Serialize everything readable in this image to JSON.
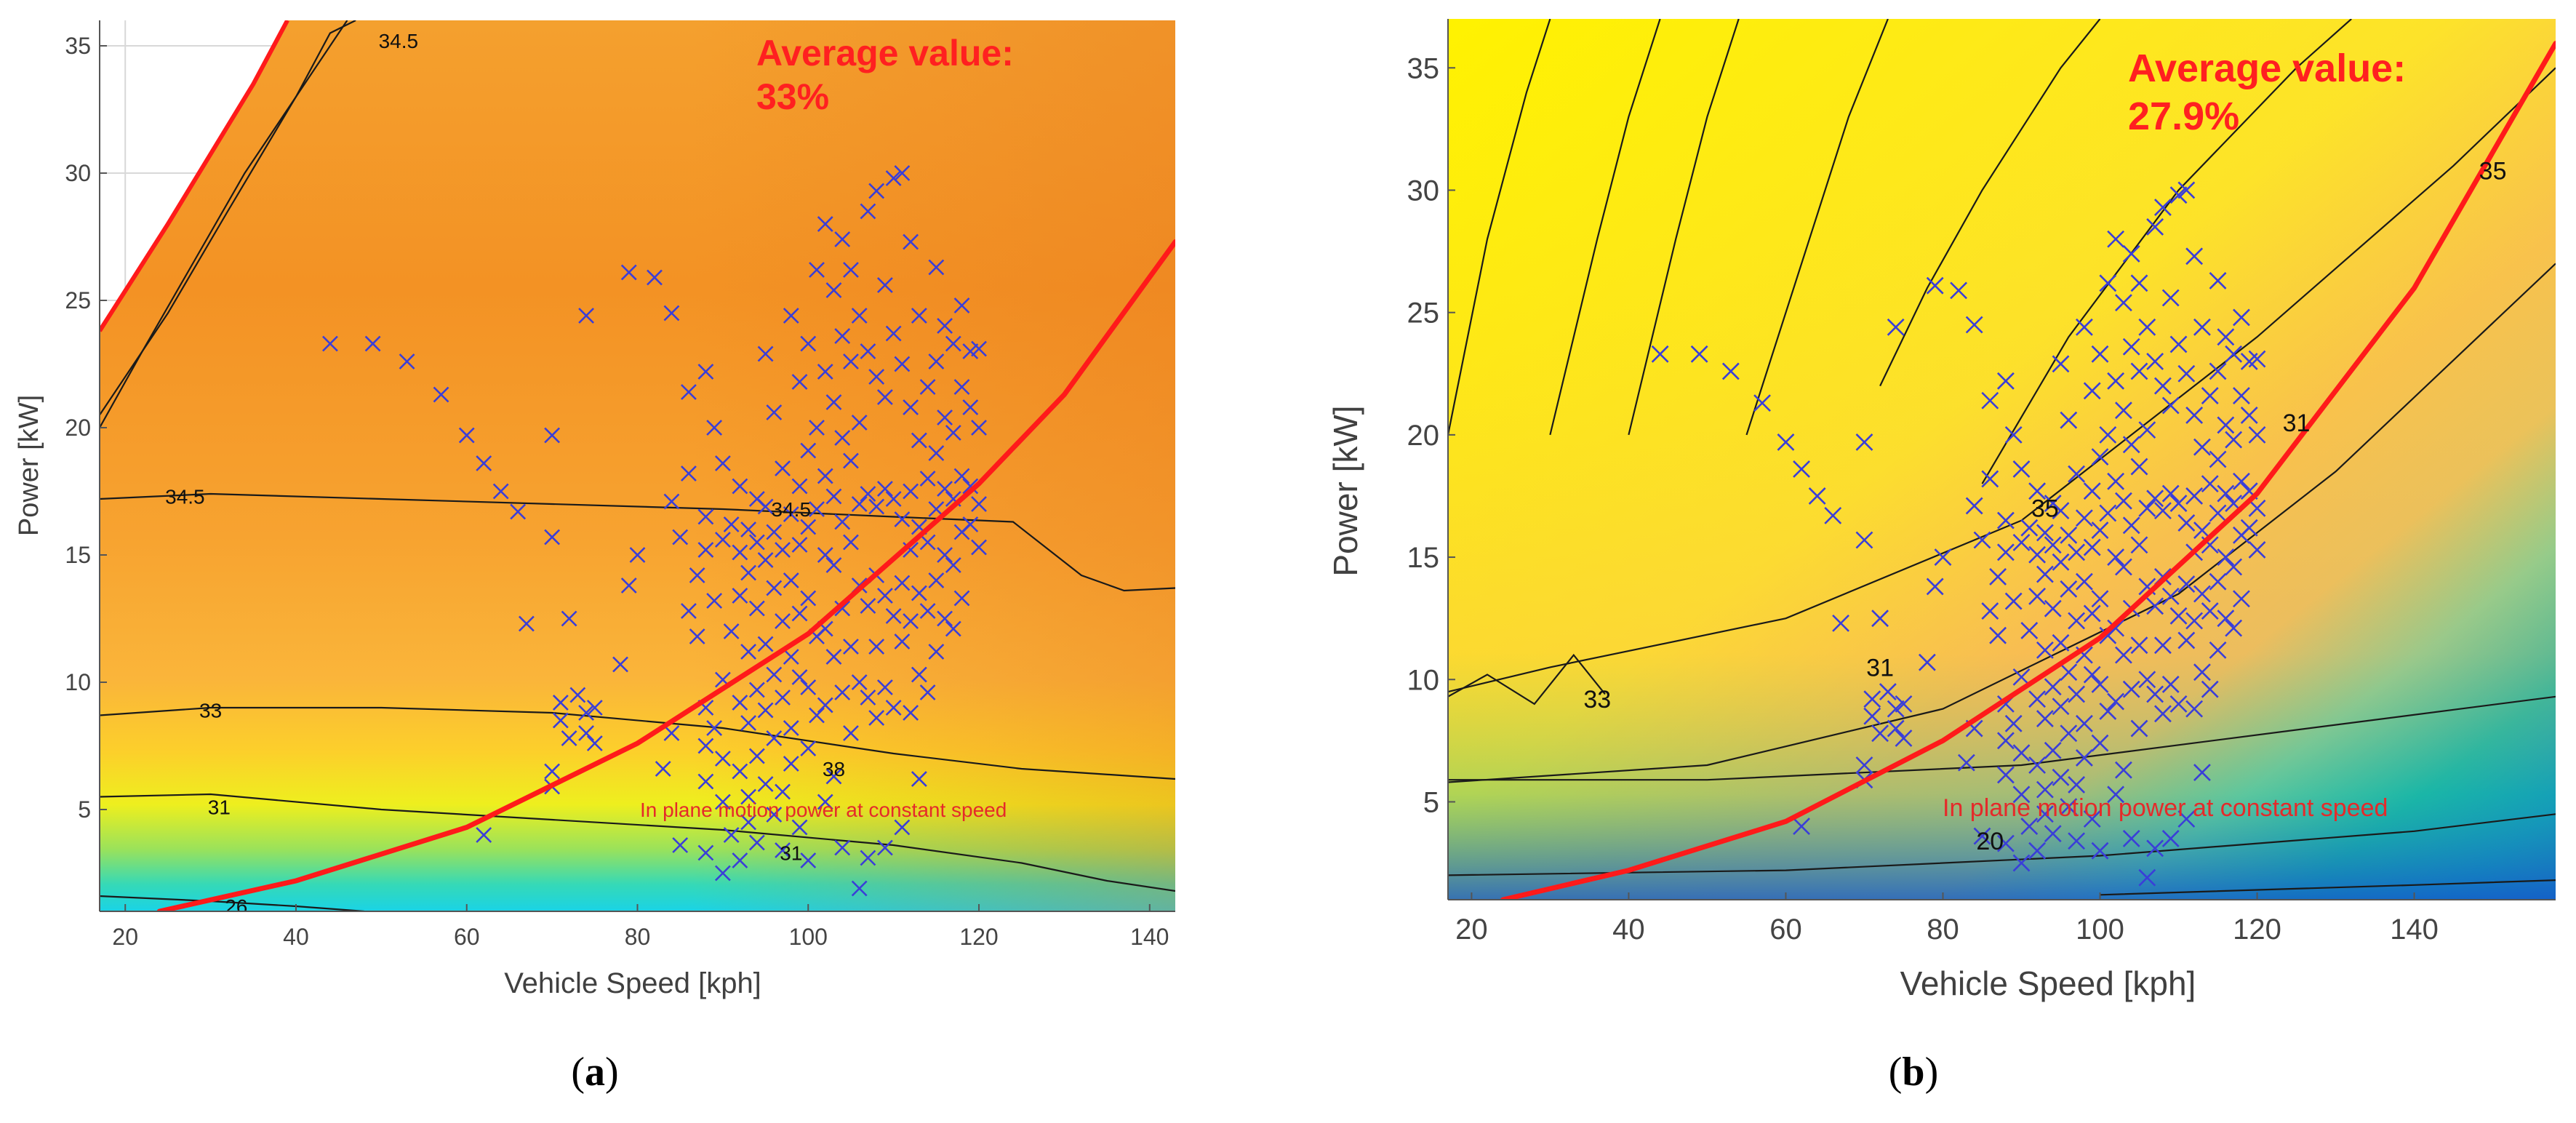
{
  "chart_data": [
    {
      "type": "scatter",
      "panel_label": "a",
      "xlabel": "Vehicle Speed [kph]",
      "ylabel": "Power [kW]",
      "xlim": [
        17,
        143
      ],
      "ylim": [
        1,
        36
      ],
      "xticks": [
        20,
        40,
        60,
        80,
        100,
        120,
        140
      ],
      "yticks": [
        5,
        10,
        15,
        20,
        25,
        30,
        35
      ],
      "average_label": "Average value:",
      "average_value": "33%",
      "road_load_label": "In plane motion power at constant speed",
      "background": "efficiency contour map (orange-dominant)",
      "contour_levels": [
        {
          "label": "34.5",
          "points": [
            [
              17,
              17.2
            ],
            [
              30,
              17.4
            ],
            [
              50,
              17.2
            ],
            [
              70,
              17.0
            ],
            [
              90,
              16.8
            ],
            [
              110,
              16.5
            ],
            [
              124,
              16.3
            ],
            [
              132,
              14.2
            ],
            [
              137,
              13.6
            ],
            [
              143,
              13.7
            ]
          ]
        },
        {
          "label": "33",
          "points": [
            [
              17,
              8.7
            ],
            [
              30,
              9.0
            ],
            [
              50,
              9.0
            ],
            [
              70,
              8.8
            ],
            [
              90,
              8.2
            ],
            [
              110,
              7.2
            ],
            [
              125,
              6.6
            ],
            [
              143,
              6.2
            ]
          ]
        },
        {
          "label": "31",
          "points": [
            [
              17,
              5.5
            ],
            [
              30,
              5.6
            ],
            [
              50,
              5.0
            ],
            [
              70,
              4.6
            ],
            [
              90,
              4.2
            ],
            [
              110,
              3.6
            ],
            [
              125,
              2.9
            ],
            [
              135,
              2.2
            ],
            [
              143,
              1.8
            ]
          ]
        },
        {
          "label": "26",
          "points": [
            [
              17,
              1.6
            ],
            [
              30,
              1.4
            ],
            [
              40,
              1.2
            ],
            [
              48,
              1.0
            ]
          ]
        },
        {
          "label": "34.5",
          "points": [
            [
              17,
              20.0
            ],
            [
              22,
              23.0
            ],
            [
              28,
              26.5
            ],
            [
              34,
              30.0
            ],
            [
              40,
              33.0
            ],
            [
              46,
              36.0
            ]
          ]
        },
        {
          "label": "",
          "points": [
            [
              17,
              20.5
            ],
            [
              25,
              24.5
            ],
            [
              32,
              28.5
            ],
            [
              40,
              33.0
            ],
            [
              44,
              35.5
            ],
            [
              47,
              36.0
            ]
          ]
        }
      ],
      "inline_labels": [
        {
          "text": "34.5",
          "x": 27,
          "y": 17.3
        },
        {
          "text": "34.5",
          "x": 98,
          "y": 16.8
        },
        {
          "text": "33",
          "x": 30,
          "y": 8.9
        },
        {
          "text": "31",
          "x": 31,
          "y": 5.1
        },
        {
          "text": "26",
          "x": 33,
          "y": 1.2
        },
        {
          "text": "34.5",
          "x": 52,
          "y": 35.2
        },
        {
          "text": "38",
          "x": 103,
          "y": 6.6
        },
        {
          "text": "31",
          "x": 98,
          "y": 3.3
        }
      ],
      "road_load_curve": [
        [
          24,
          1.0
        ],
        [
          40,
          2.2
        ],
        [
          60,
          4.3
        ],
        [
          80,
          7.6
        ],
        [
          100,
          11.9
        ],
        [
          120,
          17.8
        ],
        [
          130,
          21.3
        ],
        [
          143,
          27.3
        ]
      ],
      "wot_line": [
        [
          17,
          23.8
        ],
        [
          25,
          28.0
        ],
        [
          35,
          33.5
        ],
        [
          39,
          36.0
        ]
      ]
    },
    {
      "type": "scatter",
      "panel_label": "b",
      "xlabel": "Vehicle Speed [kph]",
      "ylabel": "Power [kW]",
      "xlim": [
        17,
        158
      ],
      "ylim": [
        1,
        37
      ],
      "xticks": [
        20,
        40,
        60,
        80,
        100,
        120,
        140
      ],
      "yticks": [
        5,
        10,
        15,
        20,
        25,
        30,
        35
      ],
      "average_label": "Average value:",
      "average_value": "27.9%",
      "road_load_label": "In plane motion power at constant speed",
      "background": "efficiency contour map (yellow to blue)",
      "contour_levels": [
        {
          "label": "35",
          "points": [
            [
              17,
              9.5
            ],
            [
              30,
              10.5
            ],
            [
              60,
              12.5
            ],
            [
              90,
              16.5
            ],
            [
              120,
              24.0
            ],
            [
              145,
              31.0
            ],
            [
              158,
              35.0
            ]
          ]
        },
        {
          "label": "31",
          "points": [
            [
              17,
              5.8
            ],
            [
              50,
              6.5
            ],
            [
              80,
              8.8
            ],
            [
              110,
              13.5
            ],
            [
              130,
              18.5
            ],
            [
              158,
              27.0
            ]
          ]
        },
        {
          "label": "33",
          "points": [
            [
              17,
              9.3
            ],
            [
              22,
              10.2
            ],
            [
              28,
              9.0
            ],
            [
              33,
              11.0
            ],
            [
              37,
              9.4
            ]
          ]
        },
        {
          "label": "",
          "points": [
            [
              17,
              5.9
            ],
            [
              50,
              5.9
            ],
            [
              90,
              6.5
            ],
            [
              158,
              9.3
            ]
          ]
        },
        {
          "label": "",
          "points": [
            [
              17,
              2.0
            ],
            [
              60,
              2.2
            ],
            [
              100,
              2.8
            ],
            [
              140,
              3.8
            ],
            [
              158,
              4.5
            ]
          ]
        },
        {
          "label": "",
          "points": [
            [
              100,
              1.2
            ],
            [
              140,
              1.6
            ],
            [
              158,
              1.8
            ]
          ]
        },
        {
          "label": "",
          "points": [
            [
              17,
              20.0
            ],
            [
              22,
              28.0
            ],
            [
              27,
              34.0
            ],
            [
              30,
              37.0
            ]
          ]
        },
        {
          "label": "",
          "points": [
            [
              30,
              20.0
            ],
            [
              36,
              28.0
            ],
            [
              40,
              33.0
            ],
            [
              44,
              37.0
            ]
          ]
        },
        {
          "label": "",
          "points": [
            [
              40,
              20.0
            ],
            [
              46,
              28.0
            ],
            [
              50,
              33.0
            ],
            [
              54,
              37.0
            ]
          ]
        },
        {
          "label": "",
          "points": [
            [
              55,
              20.0
            ],
            [
              63,
              28.0
            ],
            [
              68,
              33.0
            ],
            [
              73,
              37.0
            ]
          ]
        },
        {
          "label": "",
          "points": [
            [
              72,
              22.0
            ],
            [
              78,
              26.0
            ],
            [
              85,
              30.0
            ],
            [
              95,
              35.0
            ],
            [
              100,
              37.0
            ]
          ]
        },
        {
          "label": "",
          "points": [
            [
              85,
              18.0
            ],
            [
              96,
              24.0
            ],
            [
              110,
              30.0
            ],
            [
              125,
              35.0
            ],
            [
              132,
              37.0
            ]
          ]
        }
      ],
      "inline_labels": [
        {
          "text": "35",
          "x": 150,
          "y": 30.8
        },
        {
          "text": "31",
          "x": 125,
          "y": 20.5
        },
        {
          "text": "35",
          "x": 93,
          "y": 17.0
        },
        {
          "text": "31",
          "x": 72,
          "y": 10.5
        },
        {
          "text": "33",
          "x": 36,
          "y": 9.2
        },
        {
          "text": "20",
          "x": 86,
          "y": 3.4
        }
      ],
      "road_load_curve": [
        [
          24,
          1.0
        ],
        [
          40,
          2.2
        ],
        [
          60,
          4.2
        ],
        [
          80,
          7.5
        ],
        [
          100,
          11.7
        ],
        [
          120,
          17.6
        ],
        [
          140,
          26.0
        ],
        [
          158,
          36.0
        ]
      ],
      "wot_line": []
    }
  ],
  "scatter_points": [
    [
      44,
      23.3
    ],
    [
      49,
      23.3
    ],
    [
      53,
      22.6
    ],
    [
      57,
      21.3
    ],
    [
      60,
      19.7
    ],
    [
      62,
      18.6
    ],
    [
      64,
      17.5
    ],
    [
      66,
      16.7
    ],
    [
      67,
      12.3
    ],
    [
      70,
      19.7
    ],
    [
      70,
      15.7
    ],
    [
      72,
      12.5
    ],
    [
      71,
      9.2
    ],
    [
      71,
      8.5
    ],
    [
      72,
      7.8
    ],
    [
      73,
      9.5
    ],
    [
      74,
      8.8
    ],
    [
      74,
      8.0
    ],
    [
      75,
      9.0
    ],
    [
      75,
      7.6
    ],
    [
      70,
      6.5
    ],
    [
      70,
      5.9
    ],
    [
      74,
      24.4
    ],
    [
      78,
      10.7
    ],
    [
      79,
      13.8
    ],
    [
      79,
      26.1
    ],
    [
      80,
      15.0
    ],
    [
      82,
      25.9
    ],
    [
      84,
      24.5
    ],
    [
      84,
      17.1
    ],
    [
      85,
      15.7
    ],
    [
      83,
      6.6
    ],
    [
      84,
      8.0
    ],
    [
      85,
      3.6
    ],
    [
      86,
      21.4
    ],
    [
      86,
      18.2
    ],
    [
      87,
      14.2
    ],
    [
      86,
      12.8
    ],
    [
      87,
      11.8
    ],
    [
      88,
      22.2
    ],
    [
      88,
      16.5
    ],
    [
      88,
      15.2
    ],
    [
      88,
      9.0
    ],
    [
      88,
      7.5
    ],
    [
      88,
      6.1
    ],
    [
      88,
      3.3
    ],
    [
      89,
      20.0
    ],
    [
      89,
      13.2
    ],
    [
      89,
      8.2
    ],
    [
      90,
      18.6
    ],
    [
      90,
      15.6
    ],
    [
      90,
      10.1
    ],
    [
      90,
      7.0
    ],
    [
      90,
      5.3
    ],
    [
      90,
      2.5
    ],
    [
      91,
      16.2
    ],
    [
      91,
      12.0
    ],
    [
      91,
      4.0
    ],
    [
      92,
      17.7
    ],
    [
      92,
      15.1
    ],
    [
      92,
      13.4
    ],
    [
      92,
      9.2
    ],
    [
      92,
      6.5
    ],
    [
      92,
      3.0
    ],
    [
      93,
      16.0
    ],
    [
      93,
      14.3
    ],
    [
      93,
      11.2
    ],
    [
      93,
      8.4
    ],
    [
      93,
      5.5
    ],
    [
      93,
      4.5
    ],
    [
      94,
      17.2
    ],
    [
      94,
      15.5
    ],
    [
      94,
      12.9
    ],
    [
      94,
      9.7
    ],
    [
      94,
      7.1
    ],
    [
      94,
      3.7
    ],
    [
      95,
      22.9
    ],
    [
      95,
      16.9
    ],
    [
      95,
      14.8
    ],
    [
      95,
      11.5
    ],
    [
      95,
      8.9
    ],
    [
      95,
      6.0
    ],
    [
      96,
      20.6
    ],
    [
      96,
      15.9
    ],
    [
      96,
      13.7
    ],
    [
      96,
      10.3
    ],
    [
      96,
      7.8
    ],
    [
      96,
      4.8
    ],
    [
      97,
      18.4
    ],
    [
      97,
      15.2
    ],
    [
      97,
      12.4
    ],
    [
      97,
      9.4
    ],
    [
      97,
      5.7
    ],
    [
      97,
      3.4
    ],
    [
      98,
      24.4
    ],
    [
      98,
      16.6
    ],
    [
      98,
      14.0
    ],
    [
      98,
      11.0
    ],
    [
      98,
      8.2
    ],
    [
      98,
      6.8
    ],
    [
      99,
      21.8
    ],
    [
      99,
      17.7
    ],
    [
      99,
      15.4
    ],
    [
      99,
      12.7
    ],
    [
      99,
      10.2
    ],
    [
      99,
      4.3
    ],
    [
      100,
      23.3
    ],
    [
      100,
      19.1
    ],
    [
      100,
      16.1
    ],
    [
      100,
      13.3
    ],
    [
      100,
      9.8
    ],
    [
      100,
      7.4
    ],
    [
      100,
      3.0
    ],
    [
      101,
      26.2
    ],
    [
      101,
      20.0
    ],
    [
      101,
      16.8
    ],
    [
      101,
      11.8
    ],
    [
      101,
      8.7
    ],
    [
      102,
      28.0
    ],
    [
      102,
      22.2
    ],
    [
      102,
      18.1
    ],
    [
      102,
      15.0
    ],
    [
      102,
      12.1
    ],
    [
      102,
      9.1
    ],
    [
      102,
      5.3
    ],
    [
      103,
      25.4
    ],
    [
      103,
      21.0
    ],
    [
      103,
      17.3
    ],
    [
      103,
      14.6
    ],
    [
      103,
      11.0
    ],
    [
      103,
      6.3
    ],
    [
      104,
      27.4
    ],
    [
      104,
      23.6
    ],
    [
      104,
      19.6
    ],
    [
      104,
      16.3
    ],
    [
      104,
      12.9
    ],
    [
      104,
      9.6
    ],
    [
      104,
      3.5
    ],
    [
      105,
      26.2
    ],
    [
      105,
      22.6
    ],
    [
      105,
      18.7
    ],
    [
      105,
      15.5
    ],
    [
      105,
      11.4
    ],
    [
      105,
      8.0
    ],
    [
      106,
      24.4
    ],
    [
      106,
      20.2
    ],
    [
      106,
      17.0
    ],
    [
      106,
      13.8
    ],
    [
      106,
      10.0
    ],
    [
      106,
      1.9
    ],
    [
      107,
      28.5
    ],
    [
      107,
      23.0
    ],
    [
      107,
      17.4
    ],
    [
      107,
      13.0
    ],
    [
      107,
      9.4
    ],
    [
      107,
      3.1
    ],
    [
      108,
      29.3
    ],
    [
      108,
      22.0
    ],
    [
      108,
      16.9
    ],
    [
      108,
      14.2
    ],
    [
      108,
      11.4
    ],
    [
      108,
      8.6
    ],
    [
      109,
      25.6
    ],
    [
      109,
      21.2
    ],
    [
      109,
      17.6
    ],
    [
      109,
      13.4
    ],
    [
      109,
      9.8
    ],
    [
      109,
      3.5
    ],
    [
      110,
      29.8
    ],
    [
      110,
      23.7
    ],
    [
      110,
      17.2
    ],
    [
      110,
      12.6
    ],
    [
      110,
      9.0
    ],
    [
      111,
      30.0
    ],
    [
      111,
      22.5
    ],
    [
      111,
      16.4
    ],
    [
      111,
      13.9
    ],
    [
      111,
      11.6
    ],
    [
      111,
      4.3
    ],
    [
      112,
      27.3
    ],
    [
      112,
      20.8
    ],
    [
      112,
      17.5
    ],
    [
      112,
      15.2
    ],
    [
      112,
      12.4
    ],
    [
      112,
      8.8
    ],
    [
      113,
      24.4
    ],
    [
      113,
      19.5
    ],
    [
      113,
      16.1
    ],
    [
      113,
      13.5
    ],
    [
      113,
      10.3
    ],
    [
      113,
      6.2
    ],
    [
      114,
      21.6
    ],
    [
      114,
      18.0
    ],
    [
      114,
      15.5
    ],
    [
      114,
      12.8
    ],
    [
      114,
      9.6
    ],
    [
      115,
      26.3
    ],
    [
      115,
      22.6
    ],
    [
      115,
      19.0
    ],
    [
      115,
      16.8
    ],
    [
      115,
      14.0
    ],
    [
      115,
      11.2
    ],
    [
      116,
      24.0
    ],
    [
      116,
      20.4
    ],
    [
      116,
      17.6
    ],
    [
      116,
      15.0
    ],
    [
      116,
      12.5
    ],
    [
      117,
      23.3
    ],
    [
      117,
      19.8
    ],
    [
      117,
      17.2
    ],
    [
      117,
      14.6
    ],
    [
      117,
      12.1
    ],
    [
      118,
      24.8
    ],
    [
      118,
      21.6
    ],
    [
      118,
      18.1
    ],
    [
      118,
      15.9
    ],
    [
      118,
      13.3
    ],
    [
      119,
      23.0
    ],
    [
      119,
      20.8
    ],
    [
      119,
      17.7
    ],
    [
      119,
      16.2
    ],
    [
      120,
      23.1
    ],
    [
      120,
      20.0
    ],
    [
      120,
      17.0
    ],
    [
      120,
      15.3
    ],
    [
      62,
      4.0
    ]
  ]
}
